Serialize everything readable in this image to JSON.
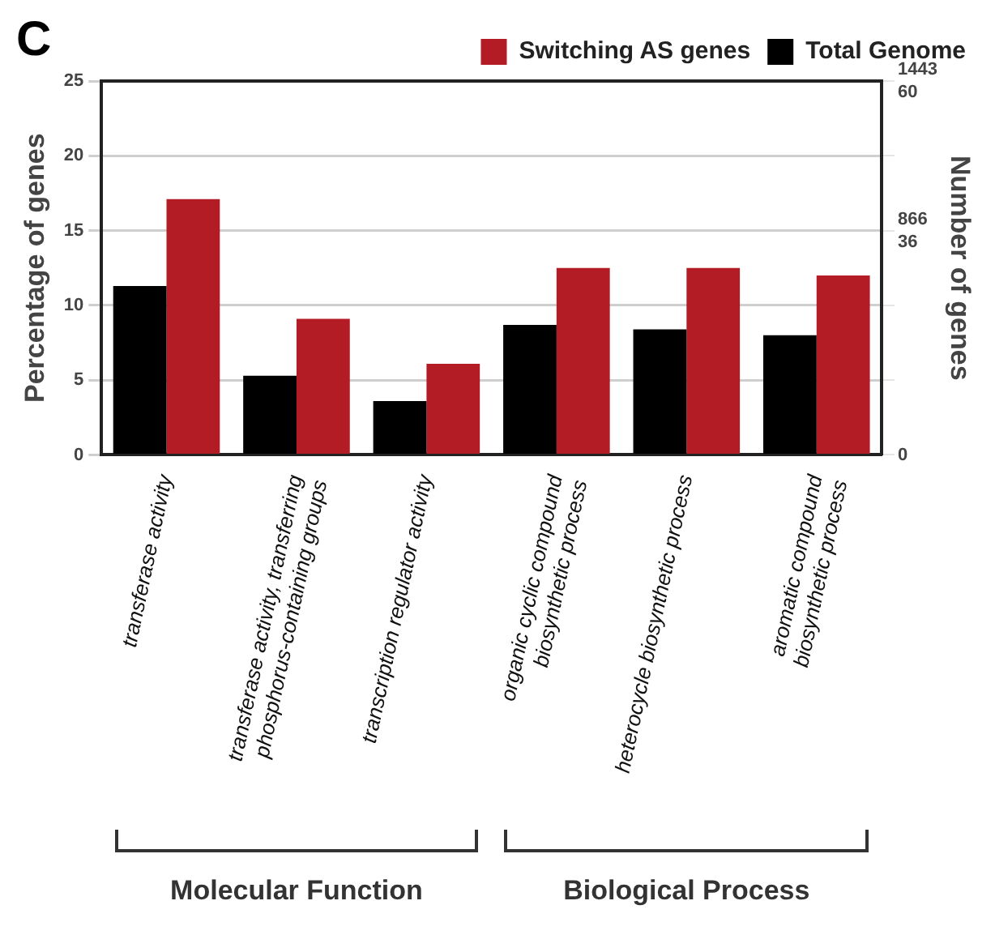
{
  "chart_data": {
    "type": "bar",
    "title": "C",
    "categories": [
      "transferase activity",
      "transferase activity, transferring phosphorus-containing groups",
      "transcription regulator activity",
      "organic cyclic compound biosynthetic process",
      "heterocycle biosynthetic process",
      "aromatic compound biosynthetic process"
    ],
    "series": [
      {
        "name": "Total Genome",
        "color": "#000000",
        "values": [
          11.3,
          5.3,
          3.6,
          8.7,
          8.4,
          8.0
        ]
      },
      {
        "name": "Switching AS genes",
        "color": "#b31c24",
        "values": [
          17.1,
          9.1,
          6.1,
          12.5,
          12.5,
          12.0
        ]
      }
    ],
    "ylabel": "Percentage of genes",
    "y2label": "Number of genes",
    "ylim": [
      0,
      25
    ],
    "yticks": [
      0,
      5,
      10,
      15,
      20,
      25
    ],
    "y2lim": [
      0,
      1443
    ],
    "y2ticks": [
      0,
      {
        "value": 288.6,
        "label": null
      },
      {
        "value": 577.2,
        "label": null
      },
      866,
      {
        "value": 1154.4,
        "label": null
      },
      1443
    ],
    "y3lim": [
      0,
      60
    ],
    "y3ticks": [
      36,
      60
    ],
    "grid": "y",
    "legend": "top right",
    "annotations": [
      "Molecular Function",
      "Biological Process"
    ]
  }
}
